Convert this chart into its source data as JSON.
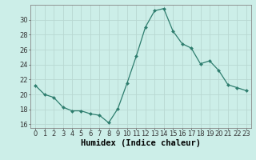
{
  "x": [
    0,
    1,
    2,
    3,
    4,
    5,
    6,
    7,
    8,
    9,
    10,
    11,
    12,
    13,
    14,
    15,
    16,
    17,
    18,
    19,
    20,
    21,
    22,
    23
  ],
  "y": [
    21.2,
    20.0,
    19.6,
    18.3,
    17.8,
    17.8,
    17.4,
    17.2,
    16.2,
    18.1,
    21.5,
    25.1,
    29.0,
    31.2,
    31.5,
    28.5,
    26.8,
    26.2,
    24.1,
    24.5,
    23.2,
    21.3,
    20.9,
    20.5
  ],
  "line_color": "#2e7d6e",
  "marker": "D",
  "marker_size": 2.0,
  "background_color": "#cceee8",
  "grid_color": "#b8d8d2",
  "xlabel": "Humidex (Indice chaleur)",
  "ylim": [
    15.5,
    32.0
  ],
  "xlim": [
    -0.5,
    23.5
  ],
  "yticks": [
    16,
    18,
    20,
    22,
    24,
    26,
    28,
    30
  ],
  "xticks": [
    0,
    1,
    2,
    3,
    4,
    5,
    6,
    7,
    8,
    9,
    10,
    11,
    12,
    13,
    14,
    15,
    16,
    17,
    18,
    19,
    20,
    21,
    22,
    23
  ],
  "tick_label_fontsize": 6.0,
  "xlabel_fontsize": 7.5
}
